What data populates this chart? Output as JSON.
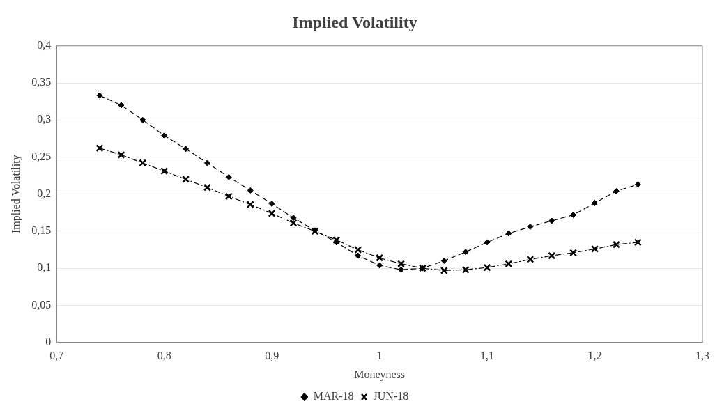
{
  "chart_data": {
    "type": "line",
    "title": "Implied Volatility",
    "xlabel": "Moneyness",
    "ylabel": "Implied Volatility",
    "x": [
      0.74,
      0.76,
      0.78,
      0.8,
      0.82,
      0.84,
      0.86,
      0.88,
      0.9,
      0.92,
      0.94,
      0.96,
      0.98,
      1.0,
      1.02,
      1.04,
      1.06,
      1.08,
      1.1,
      1.12,
      1.14,
      1.16,
      1.18,
      1.2,
      1.22,
      1.24
    ],
    "series": [
      {
        "name": "MAR-18",
        "color": "#000000",
        "marker": "diamond",
        "line_style": "dashed",
        "values": [
          0.333,
          0.32,
          0.3,
          0.279,
          0.261,
          0.242,
          0.223,
          0.205,
          0.187,
          0.168,
          0.151,
          0.135,
          0.117,
          0.104,
          0.098,
          0.1,
          0.11,
          0.122,
          0.135,
          0.147,
          0.156,
          0.164,
          0.172,
          0.188,
          0.204,
          0.213
        ]
      },
      {
        "name": "JUN-18",
        "color": "#000000",
        "marker": "cross",
        "line_style": "dashdot",
        "values": [
          0.262,
          0.253,
          0.242,
          0.231,
          0.22,
          0.209,
          0.197,
          0.186,
          0.174,
          0.161,
          0.15,
          0.138,
          0.125,
          0.114,
          0.106,
          0.1,
          0.097,
          0.098,
          0.101,
          0.106,
          0.112,
          0.117,
          0.121,
          0.126,
          0.132,
          0.135
        ]
      }
    ],
    "xlim": [
      0.7,
      1.3
    ],
    "xticks": [
      {
        "value": 0.7,
        "label": "0,7"
      },
      {
        "value": 0.8,
        "label": "0,8"
      },
      {
        "value": 0.9,
        "label": "0,9"
      },
      1,
      {
        "value": 1.1,
        "label": "1,1"
      },
      {
        "value": 1.2,
        "label": "1,2"
      },
      {
        "value": 1.3,
        "label": "1,3"
      }
    ],
    "ylim": [
      0,
      0.4
    ],
    "yticks": [
      0,
      {
        "value": 0.05,
        "label": "0,05"
      },
      {
        "value": 0.1,
        "label": "0,1"
      },
      {
        "value": 0.15,
        "label": "0,15"
      },
      {
        "value": 0.2,
        "label": "0,2"
      },
      {
        "value": 0.25,
        "label": "0,25"
      },
      {
        "value": 0.3,
        "label": "0,3"
      },
      {
        "value": 0.35,
        "label": "0,35"
      },
      {
        "value": 0.4,
        "label": "0,4"
      }
    ],
    "grid": "y",
    "legend": "bottom"
  }
}
